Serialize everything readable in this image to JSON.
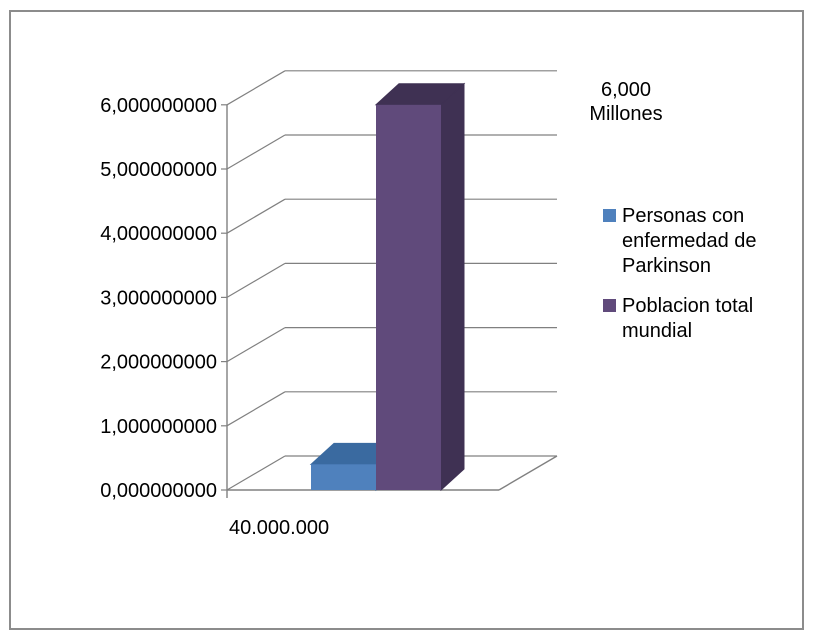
{
  "chart_data": {
    "type": "bar",
    "style": "3d-clustered-column",
    "ylim": [
      0,
      6
    ],
    "ytick_labels": [
      "0,000000000",
      "1,000000000",
      "2,000000000",
      "3,000000000",
      "4,000000000",
      "5,000000000",
      "6,000000000"
    ],
    "categories": [
      "40.000.000"
    ],
    "series": [
      {
        "name": "Personas con enfermedad de Parkinson",
        "values": [
          0.4
        ],
        "color": "#4f81bd",
        "top_color": "#3a6aa0"
      },
      {
        "name": "Poblacion total mundial",
        "values": [
          6.0
        ],
        "color": "#604a7b",
        "side_color": "#3f3153",
        "top_color": "#3f3153",
        "data_label": "6,000\nMillones"
      }
    ],
    "legend_position": "right",
    "grid": true,
    "gridline_color": "#808080"
  }
}
